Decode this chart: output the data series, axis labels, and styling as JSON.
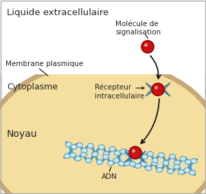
{
  "title": "Liquide extracellulaire",
  "label_membrane": "Membrane plasmique",
  "label_cytoplasm": "Cytoplasme",
  "label_nucleus": "Noyau",
  "label_molecule": "Molécule de\nsignalisation",
  "label_receptor": "Récepteur\nintracellulaire",
  "label_adn": "ADN",
  "extracellular_color": "#ffffff",
  "membrane_color": "#c8a878",
  "cytoplasm_color": "#f5dfa0",
  "nucleus_color": "#cbb8d8",
  "nucleus_border_color": "#9070b0",
  "molecule_color": "#cc1111",
  "molecule_outline": "#880000",
  "receptor_color": "#66aacc",
  "dna_backbone_color": "#88c8d8",
  "dna_fill_color": "#c8e8f0",
  "dna_border_color": "#5599bb",
  "arrow_color": "#111111",
  "text_color": "#222222",
  "border_color": "#aaaaaa",
  "bg_color": "#f0f0f0"
}
